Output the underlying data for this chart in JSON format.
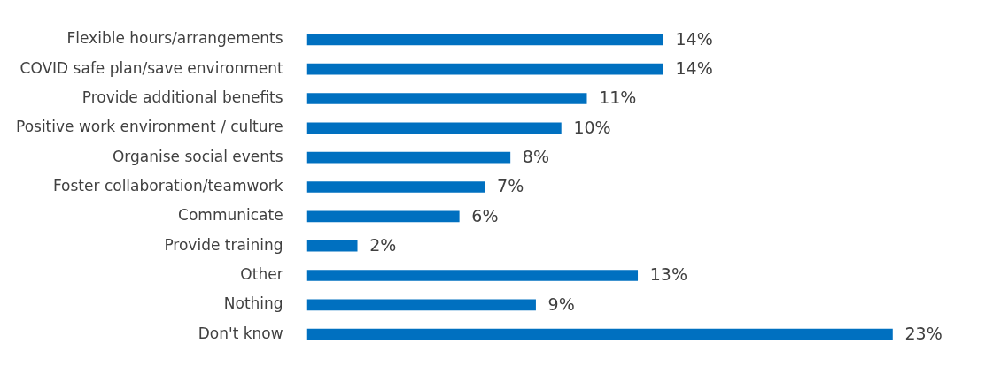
{
  "chart_data": {
    "type": "bar",
    "orientation": "horizontal",
    "categories": [
      "Flexible hours/arrangements",
      "COVID safe plan/save environment",
      "Provide additional benefits",
      "Positive work environment / culture",
      "Organise social events",
      "Foster collaboration/teamwork",
      "Communicate",
      "Provide training",
      "Other",
      "Nothing",
      "Don't know"
    ],
    "values": [
      14,
      14,
      11,
      10,
      8,
      7,
      6,
      2,
      13,
      9,
      23
    ],
    "value_labels": [
      "14%",
      "14%",
      "11%",
      "10%",
      "8%",
      "7%",
      "6%",
      "2%",
      "13%",
      "9%",
      "23%"
    ],
    "color": "#0070c0"
  }
}
